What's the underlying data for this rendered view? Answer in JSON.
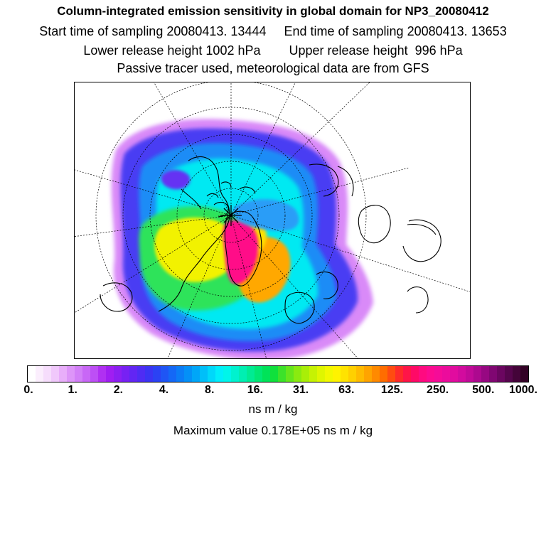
{
  "header": {
    "title": "Column-integrated emission sensitivity in global domain for NP3_20080412",
    "sampling_line": "Start time of sampling 20080413. 13444     End time of sampling 20080413. 13653",
    "release_line": "Lower release height 1002 hPa        Upper release height  996 hPa",
    "tracer_line": "Passive tracer used, meteorological data are from GFS"
  },
  "colorbar": {
    "unit": "ns m / kg",
    "tick_labels": [
      "0.",
      "1.",
      "2.",
      "4.",
      "8.",
      "16.",
      "31.",
      "63.",
      "125.",
      "250.",
      "500.",
      "1000."
    ],
    "colors": [
      "#ffffff",
      "#fbeefd",
      "#f6ddfc",
      "#f0c8fb",
      "#e8aefa",
      "#dd95f8",
      "#d27ff7",
      "#c867f6",
      "#bd4ff5",
      "#b030f2",
      "#a01ef2",
      "#8c1ff2",
      "#7721f3",
      "#6226f3",
      "#4f2cf3",
      "#3b34f3",
      "#2b42f4",
      "#1f55f5",
      "#1468f6",
      "#0b7cf6",
      "#0490f7",
      "#00a6f8",
      "#00bff9",
      "#00d8fa",
      "#00eefa",
      "#00f5ea",
      "#00f2cf",
      "#00efb2",
      "#00eb93",
      "#00e774",
      "#00e358",
      "#10e03c",
      "#3ce22a",
      "#65e61c",
      "#8aea10",
      "#a9ee08",
      "#c6f203",
      "#dff600",
      "#f2f800",
      "#fff300",
      "#ffe300",
      "#ffd000",
      "#ffbb00",
      "#ffa400",
      "#ff8a00",
      "#ff6d00",
      "#ff4c10",
      "#ff2b2a",
      "#ff1548",
      "#ff0a66",
      "#ff0a80",
      "#fc0b90",
      "#f50c98",
      "#ec0c9c",
      "#e10c9f",
      "#d20b9e",
      "#c10a98",
      "#ad098f",
      "#970882",
      "#800772",
      "#6b0660",
      "#56054d",
      "#440439",
      "#330226"
    ]
  },
  "legend_note": {
    "max_value": "Maximum value  0.178E+05 ns m / kg"
  }
}
